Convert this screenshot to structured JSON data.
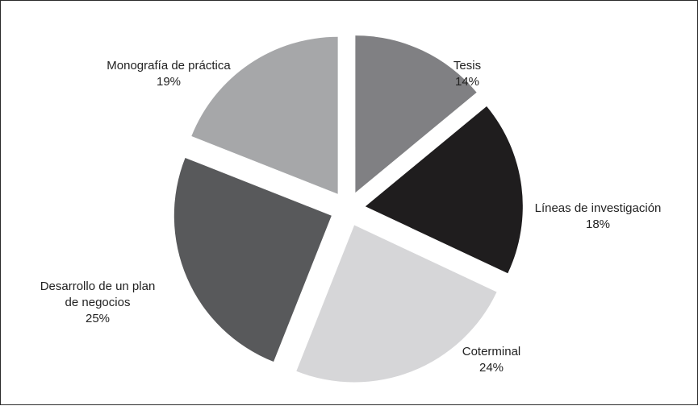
{
  "chart_data": {
    "type": "pie",
    "title": "",
    "slices": [
      {
        "label_lines": [
          "Tesis"
        ],
        "value": 14,
        "value_label": "14%",
        "color": "#808083"
      },
      {
        "label_lines": [
          "Líneas de investigación"
        ],
        "value": 18,
        "value_label": "18%",
        "color": "#1f1d1e"
      },
      {
        "label_lines": [
          "Coterminal"
        ],
        "value": 24,
        "value_label": "24%",
        "color": "#d6d6d8"
      },
      {
        "label_lines": [
          "Desarrollo de un plan",
          "de negocios"
        ],
        "value": 25,
        "value_label": "25%",
        "color": "#58595b"
      },
      {
        "label_lines": [
          "Monografía de práctica"
        ],
        "value": 19,
        "value_label": "19%",
        "color": "#a6a7a9"
      }
    ],
    "start_angle_deg": 0,
    "direction": "clockwise",
    "exploded": true,
    "legend": "none"
  }
}
